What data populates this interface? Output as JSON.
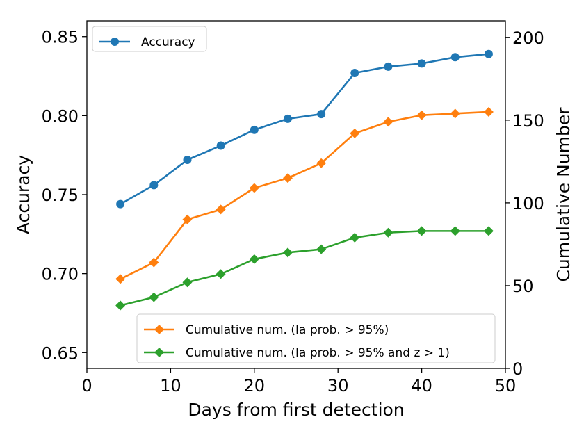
{
  "chart_data": {
    "type": "line",
    "xlabel": "Days from first detection",
    "ylabel_left": "Accuracy",
    "ylabel_right": "Cumulative Number",
    "xlim": [
      0,
      50
    ],
    "ylim_left": [
      0.64,
      0.86
    ],
    "ylim_right": [
      0,
      210
    ],
    "x_ticks": [
      0,
      10,
      20,
      30,
      40,
      50
    ],
    "x_tick_labels": [
      "0",
      "10",
      "20",
      "30",
      "40",
      "50"
    ],
    "y_left_ticks": [
      0.65,
      0.7,
      0.75,
      0.8,
      0.85
    ],
    "y_left_tick_labels": [
      "0.65",
      "0.70",
      "0.75",
      "0.80",
      "0.85"
    ],
    "y_right_ticks": [
      0,
      50,
      100,
      150,
      200
    ],
    "y_right_tick_labels": [
      "0",
      "50",
      "100",
      "150",
      "200"
    ],
    "grid": false,
    "x": [
      4,
      8,
      12,
      16,
      20,
      24,
      28,
      32,
      36,
      40,
      44,
      48
    ],
    "series": [
      {
        "name": "Accuracy",
        "axis": "left",
        "marker": "circle",
        "color": "#1f77b4",
        "values": [
          0.744,
          0.756,
          0.772,
          0.781,
          0.791,
          0.798,
          0.801,
          0.827,
          0.831,
          0.833,
          0.837,
          0.839
        ]
      },
      {
        "name": "Cumulative num. (Ia prob. > 95%)",
        "axis": "right",
        "marker": "diamond",
        "color": "#ff7f0e",
        "values": [
          54,
          64,
          90,
          96,
          109,
          115,
          124,
          142,
          149,
          153,
          154,
          155
        ]
      },
      {
        "name": "Cumulative num. (Ia prob. > 95% and z > 1)",
        "axis": "right",
        "marker": "diamond",
        "color": "#2ca02c",
        "values": [
          38,
          43,
          52,
          57,
          66,
          70,
          72,
          79,
          82,
          83,
          83,
          83
        ]
      }
    ],
    "legends": [
      {
        "placement": "upper-left",
        "entries": [
          "Accuracy"
        ]
      },
      {
        "placement": "lower-right",
        "entries": [
          "Cumulative num. (Ia prob. > 95%)",
          "Cumulative num. (Ia prob. > 95% and z > 1)"
        ]
      }
    ]
  }
}
